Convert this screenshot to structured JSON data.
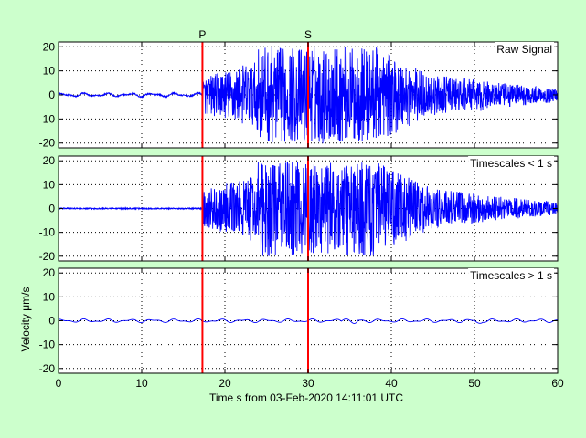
{
  "colors": {
    "background": "#ccffcc",
    "plot_background": "#ffffff",
    "trace": "#0000ff",
    "phase_marker": "#ff0000",
    "grid": "#000000"
  },
  "chart_data": [
    {
      "type": "line",
      "panel_label": "Raw Signal",
      "xlim": [
        0,
        60
      ],
      "ylim": [
        -22,
        22
      ],
      "x_ticks": [
        0,
        10,
        20,
        30,
        40,
        50,
        60
      ],
      "y_ticks": [
        -20,
        -10,
        0,
        10,
        20
      ],
      "grid": "dotted",
      "peak_amplitude": 20,
      "phase_markers": [
        {
          "label": "P",
          "x": 17.3
        },
        {
          "label": "S",
          "x": 30.0
        }
      ]
    },
    {
      "type": "line",
      "panel_label": "Timescales < 1 s",
      "xlim": [
        0,
        60
      ],
      "ylim": [
        -22,
        22
      ],
      "x_ticks": [
        0,
        10,
        20,
        30,
        40,
        50,
        60
      ],
      "y_ticks": [
        -20,
        -10,
        0,
        10,
        20
      ],
      "grid": "dotted",
      "peak_amplitude": 20,
      "phase_markers": [
        {
          "label": "P",
          "x": 17.3
        },
        {
          "label": "S",
          "x": 30.0
        }
      ]
    },
    {
      "type": "line",
      "panel_label": "Timescales > 1 s",
      "xlim": [
        0,
        60
      ],
      "ylim": [
        -22,
        22
      ],
      "x_ticks": [
        0,
        10,
        20,
        30,
        40,
        50,
        60
      ],
      "y_ticks": [
        -20,
        -10,
        0,
        10,
        20
      ],
      "grid": "dotted",
      "peak_amplitude": 3,
      "phase_markers": [
        {
          "label": "P",
          "x": 17.3
        },
        {
          "label": "S",
          "x": 30.0
        }
      ],
      "ylabel": "Velocity μm/s",
      "xlabel": "Time s from 03-Feb-2020 14:11:01 UTC"
    }
  ]
}
